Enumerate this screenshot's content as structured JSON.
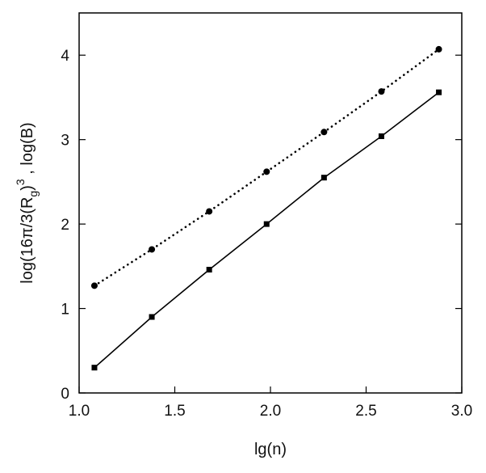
{
  "chart_data": {
    "type": "line",
    "xlabel": "lg(n)",
    "ylabel": {
      "prefix": "log(16π/3(R",
      "subscript": "g",
      "mid": ")",
      "superscript": "3",
      "suffix": " , log(B)"
    },
    "xlim": [
      1.0,
      3.0
    ],
    "ylim": [
      0,
      4.5
    ],
    "xticks": [
      "1.0",
      "1.5",
      "2.0",
      "2.5",
      "3.0"
    ],
    "yticks": [
      "0",
      "1",
      "2",
      "3",
      "4"
    ],
    "grid": false,
    "series": [
      {
        "style": "dotted",
        "marker": "circle",
        "x": [
          1.08,
          1.38,
          1.68,
          1.98,
          2.28,
          2.58,
          2.88
        ],
        "y": [
          1.27,
          1.7,
          2.15,
          2.62,
          3.09,
          3.57,
          4.07
        ]
      },
      {
        "style": "solid",
        "marker": "square",
        "x": [
          1.08,
          1.38,
          1.68,
          1.98,
          2.28,
          2.58,
          2.88
        ],
        "y": [
          0.3,
          0.9,
          1.46,
          2.0,
          2.55,
          3.04,
          3.56
        ]
      }
    ]
  }
}
